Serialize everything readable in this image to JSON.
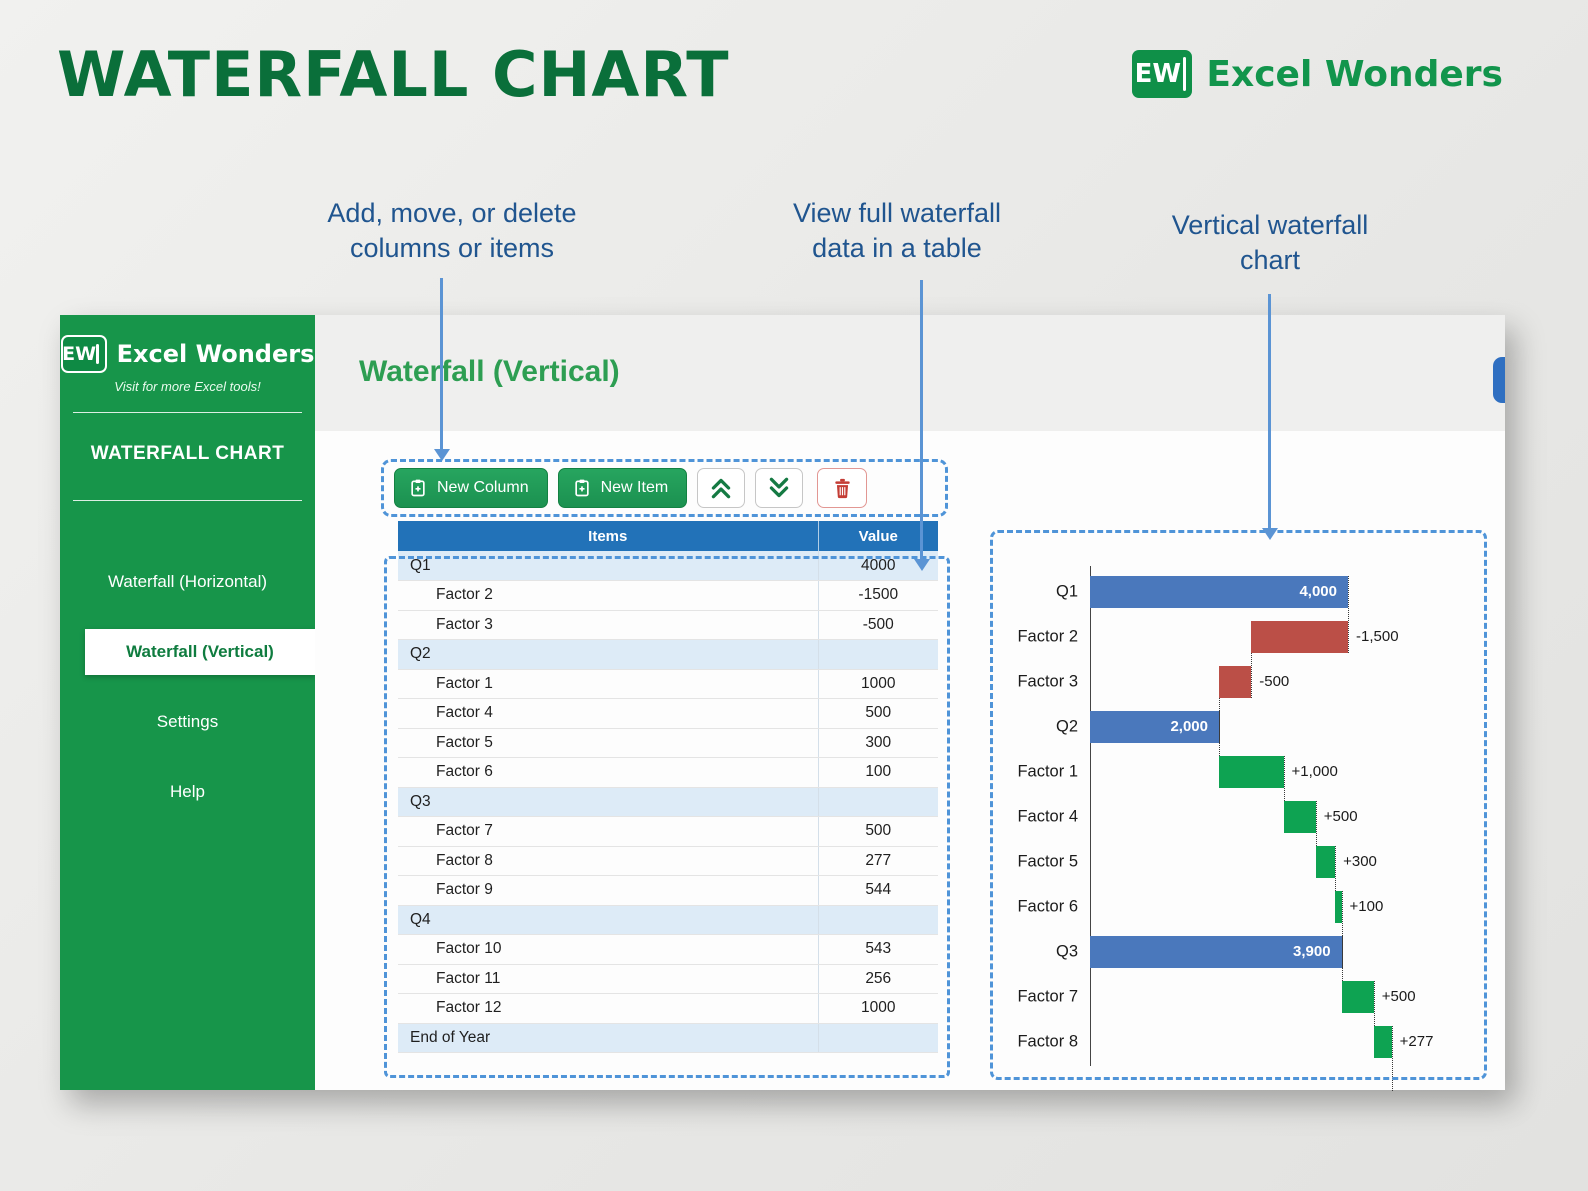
{
  "page": {
    "title": "WATERFALL CHART",
    "brand": {
      "logo_text": "EW",
      "name": "Excel Wonders"
    }
  },
  "callouts": [
    {
      "text": "Add, move, or delete\ncolumns or items"
    },
    {
      "text": "View full waterfall\ndata in a table"
    },
    {
      "text": "Vertical waterfall\nchart"
    }
  ],
  "app": {
    "sidebar": {
      "brand": {
        "logo_text": "EW",
        "name": "Excel Wonders",
        "tagline": "Visit for more Excel tools!"
      },
      "section_title": "WATERFALL CHART",
      "items": [
        {
          "label": "Waterfall (Horizontal)",
          "active": false
        },
        {
          "label": "Waterfall (Vertical)",
          "active": true
        },
        {
          "label": "Settings",
          "active": false
        },
        {
          "label": "Help",
          "active": false
        }
      ]
    },
    "main": {
      "page_title": "Waterfall (Vertical)",
      "toolbar": {
        "new_column_label": "New Column",
        "new_item_label": "New Item"
      },
      "table": {
        "headers": [
          "Items",
          "Value"
        ],
        "rows": [
          {
            "item": "Q1",
            "value": "4000",
            "subtotal": true
          },
          {
            "item": "Factor 2",
            "value": "-1500",
            "subtotal": false
          },
          {
            "item": "Factor 3",
            "value": "-500",
            "subtotal": false
          },
          {
            "item": "Q2",
            "value": "",
            "subtotal": true
          },
          {
            "item": "Factor 1",
            "value": "1000",
            "subtotal": false
          },
          {
            "item": "Factor 4",
            "value": "500",
            "subtotal": false
          },
          {
            "item": "Factor 5",
            "value": "300",
            "subtotal": false
          },
          {
            "item": "Factor 6",
            "value": "100",
            "subtotal": false
          },
          {
            "item": "Q3",
            "value": "",
            "subtotal": true
          },
          {
            "item": "Factor 7",
            "value": "500",
            "subtotal": false
          },
          {
            "item": "Factor 8",
            "value": "277",
            "subtotal": false
          },
          {
            "item": "Factor 9",
            "value": "544",
            "subtotal": false
          },
          {
            "item": "Q4",
            "value": "",
            "subtotal": true
          },
          {
            "item": "Factor 10",
            "value": "543",
            "subtotal": false
          },
          {
            "item": "Factor 11",
            "value": "256",
            "subtotal": false
          },
          {
            "item": "Factor 12",
            "value": "1000",
            "subtotal": false
          },
          {
            "item": "End of Year",
            "value": "",
            "subtotal": true
          }
        ]
      }
    }
  },
  "chart_data": {
    "type": "bar",
    "subtype": "waterfall",
    "orientation": "horizontal",
    "categories": [
      "Q1",
      "Factor 2",
      "Factor 3",
      "Q2",
      "Factor 1",
      "Factor 4",
      "Factor 5",
      "Factor 6",
      "Q3",
      "Factor 7",
      "Factor 8"
    ],
    "values": [
      4000,
      -1500,
      -500,
      2000,
      1000,
      500,
      300,
      100,
      3900,
      500,
      277
    ],
    "kinds": [
      "total",
      "delta",
      "delta",
      "total",
      "delta",
      "delta",
      "delta",
      "delta",
      "total",
      "delta",
      "delta"
    ],
    "labels": [
      "4,000",
      "-1,500",
      "-500",
      "2,000",
      "+1,000",
      "+500",
      "+300",
      "+100",
      "3,900",
      "+500",
      "+277"
    ],
    "colors": {
      "total": "#4a78bc",
      "increase": "#0ea352",
      "decrease": "#bb4f47"
    },
    "xlim": [
      0,
      5500
    ],
    "grid": false,
    "legend": false
  }
}
